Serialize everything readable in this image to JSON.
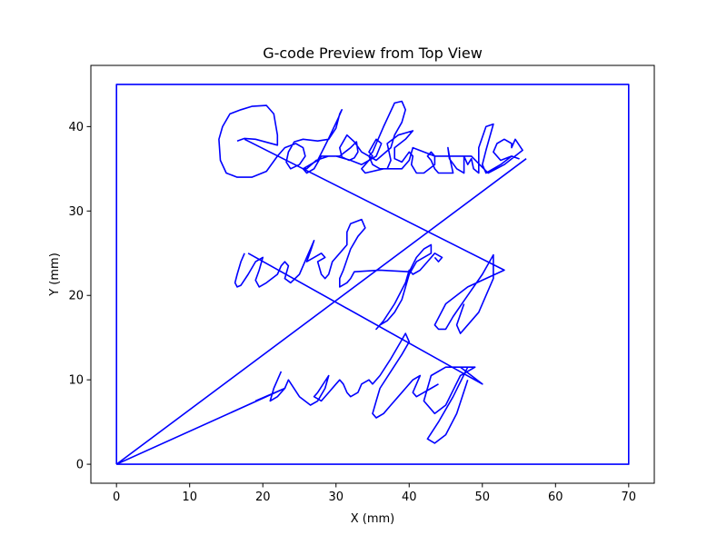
{
  "chart_data": {
    "type": "line",
    "title": "G-code Preview from Top View",
    "xlabel": "X (mm)",
    "ylabel": "Y (mm)",
    "xlim": [
      -3.5,
      73.5
    ],
    "ylim": [
      -2.25,
      47.25
    ],
    "xticks": [
      0,
      10,
      20,
      30,
      40,
      50,
      60,
      70
    ],
    "yticks": [
      0,
      10,
      20,
      30,
      40
    ],
    "grid": false,
    "legend": "none",
    "line_color": "#0000ff",
    "series": [
      {
        "path": [
          [
            0,
            0
          ],
          [
            70,
            0
          ],
          [
            70,
            45
          ],
          [
            0,
            45
          ],
          [
            0,
            0
          ]
        ]
      },
      {
        "path": [
          [
            0,
            0
          ],
          [
            23,
            9
          ],
          [
            19,
            7.5
          ]
        ]
      },
      {
        "path": [
          [
            0,
            0
          ],
          [
            56,
            36.2
          ]
        ]
      },
      {
        "path": [
          [
            17.5,
            38.5
          ],
          [
            53,
            23
          ],
          [
            48,
            21
          ],
          [
            45,
            19
          ],
          [
            43.5,
            16.5
          ],
          [
            44,
            16
          ],
          [
            45,
            16
          ],
          [
            46,
            17.5
          ],
          [
            48,
            20
          ],
          [
            50,
            22.5
          ],
          [
            51.5,
            24.8
          ],
          [
            51.5,
            22
          ],
          [
            49.5,
            18
          ],
          [
            47,
            15.5
          ],
          [
            46.5,
            16.5
          ],
          [
            47.5,
            19
          ]
        ]
      },
      {
        "path": [
          [
            18,
            25
          ],
          [
            50,
            9.5
          ],
          [
            47,
            11.5
          ],
          [
            49,
            11.5
          ],
          [
            47,
            10.5
          ],
          [
            45,
            7
          ],
          [
            43.5,
            6
          ],
          [
            42,
            7.5
          ],
          [
            43,
            10.5
          ],
          [
            45,
            11.5
          ],
          [
            48,
            11.5
          ],
          [
            46,
            8
          ],
          [
            44,
            5
          ],
          [
            42.5,
            3
          ],
          [
            43.5,
            2.5
          ],
          [
            45,
            3.5
          ],
          [
            46.5,
            6
          ],
          [
            48,
            10
          ]
        ]
      },
      {
        "path": [
          [
            16.5,
            38.3
          ],
          [
            17.5,
            38.6
          ],
          [
            19,
            38.5
          ],
          [
            22,
            37.8
          ],
          [
            22,
            39
          ],
          [
            21.5,
            41.5
          ],
          [
            20.5,
            42.5
          ],
          [
            18.5,
            42.4
          ],
          [
            17,
            42
          ],
          [
            15.5,
            41.5
          ],
          [
            14.5,
            40
          ],
          [
            14,
            38.5
          ],
          [
            14.2,
            36
          ],
          [
            15,
            34.5
          ],
          [
            16.5,
            34
          ],
          [
            18.5,
            34
          ],
          [
            20.5,
            34.7
          ],
          [
            22,
            36.5
          ],
          [
            23,
            37.5
          ],
          [
            24.5,
            38
          ],
          [
            25.5,
            37.5
          ],
          [
            25.8,
            36.5
          ],
          [
            25,
            35.5
          ],
          [
            23.8,
            35
          ],
          [
            23.2,
            35.8
          ],
          [
            23.5,
            37
          ],
          [
            24.3,
            38.2
          ],
          [
            25.5,
            38.5
          ],
          [
            27.5,
            38.3
          ],
          [
            29,
            38.5
          ],
          [
            30,
            39.8
          ],
          [
            30.5,
            41.5
          ],
          [
            30.8,
            42
          ],
          [
            30.3,
            41
          ],
          [
            29,
            38.6
          ],
          [
            27.5,
            36
          ],
          [
            25.5,
            35
          ],
          [
            26,
            35
          ],
          [
            27.3,
            36
          ],
          [
            29,
            36.5
          ],
          [
            30.5,
            36.5
          ],
          [
            32,
            37.5
          ],
          [
            32.8,
            38.2
          ],
          [
            33,
            37
          ],
          [
            32.5,
            36.3
          ],
          [
            31.8,
            36
          ],
          [
            30.8,
            36.4
          ],
          [
            30.5,
            37.5
          ],
          [
            31.5,
            39
          ],
          [
            32.5,
            38.2
          ],
          [
            33.5,
            37
          ],
          [
            35.5,
            36
          ],
          [
            37.5,
            37.5
          ],
          [
            38,
            39
          ],
          [
            39,
            40.5
          ],
          [
            39.5,
            42
          ],
          [
            39,
            43
          ],
          [
            38,
            42.8
          ],
          [
            36.5,
            40
          ],
          [
            35,
            37
          ],
          [
            34.5,
            36.5
          ],
          [
            35,
            35.5
          ],
          [
            36,
            35
          ],
          [
            37,
            35
          ],
          [
            37.5,
            36
          ],
          [
            37,
            38
          ],
          [
            38.5,
            39
          ],
          [
            40.5,
            39.5
          ],
          [
            39.5,
            38.5
          ],
          [
            38,
            37.5
          ],
          [
            38,
            36.2
          ],
          [
            39,
            35.8
          ],
          [
            40,
            37
          ],
          [
            40.5,
            36.5
          ],
          [
            40.3,
            35.5
          ],
          [
            41,
            34.5
          ],
          [
            42,
            34.5
          ],
          [
            43.5,
            35.5
          ],
          [
            43.5,
            36.5
          ],
          [
            43,
            37
          ],
          [
            42.5,
            36.5
          ],
          [
            43,
            36
          ],
          [
            43.5,
            35
          ],
          [
            44,
            34.5
          ],
          [
            46,
            34.5
          ],
          [
            45.5,
            36.5
          ],
          [
            45.3,
            37.5
          ],
          [
            45.5,
            36.2
          ],
          [
            46.5,
            35
          ],
          [
            47.5,
            34.5
          ],
          [
            47.5,
            36.5
          ],
          [
            48,
            35.5
          ],
          [
            48.5,
            36.2
          ],
          [
            48.8,
            35
          ],
          [
            49.5,
            34.5
          ],
          [
            49.5,
            37.5
          ],
          [
            50.5,
            40
          ],
          [
            51.5,
            40.3
          ],
          [
            50.5,
            37.2
          ],
          [
            50,
            35.5
          ],
          [
            50.5,
            34.5
          ],
          [
            52.5,
            35.5
          ],
          [
            54,
            36.5
          ],
          [
            55,
            36.2
          ],
          [
            54,
            36.5
          ],
          [
            52.5,
            36
          ],
          [
            51.5,
            37
          ],
          [
            52,
            38
          ],
          [
            53,
            38.5
          ],
          [
            54,
            38
          ],
          [
            54,
            37.5
          ],
          [
            54.5,
            38.5
          ],
          [
            55.5,
            37.2
          ],
          [
            53,
            35.5
          ],
          [
            50.8,
            34.5
          ],
          [
            50.2,
            35
          ],
          [
            48.5,
            36.5
          ],
          [
            43.5,
            36.5
          ],
          [
            40.5,
            37.5
          ],
          [
            40,
            36
          ],
          [
            39,
            35
          ],
          [
            36.5,
            35
          ],
          [
            34,
            34.5
          ],
          [
            33.5,
            35
          ],
          [
            35,
            36.5
          ],
          [
            34.5,
            37
          ],
          [
            35.5,
            38.5
          ],
          [
            36.2,
            38
          ],
          [
            35.5,
            36.5
          ],
          [
            33.5,
            35.5
          ],
          [
            32,
            36
          ],
          [
            30,
            36.5
          ],
          [
            28,
            36.5
          ],
          [
            27,
            35
          ],
          [
            26,
            34.5
          ],
          [
            25.5,
            35
          ]
        ]
      },
      {
        "path": [
          [
            17.5,
            25
          ],
          [
            17,
            24
          ],
          [
            16.5,
            22.5
          ],
          [
            16.2,
            21.5
          ],
          [
            16.5,
            21
          ],
          [
            17,
            21.2
          ],
          [
            18,
            22.5
          ],
          [
            19,
            24
          ],
          [
            20,
            24.5
          ],
          [
            19.5,
            23
          ],
          [
            19,
            21.8
          ],
          [
            19.5,
            21
          ],
          [
            20.5,
            21.5
          ],
          [
            22,
            22.5
          ],
          [
            22.5,
            23.5
          ],
          [
            23,
            24
          ],
          [
            23.5,
            23.5
          ],
          [
            23,
            22
          ],
          [
            23.8,
            21.5
          ],
          [
            25,
            22.5
          ],
          [
            26,
            24.5
          ],
          [
            26.5,
            25.5
          ],
          [
            27,
            26.5
          ],
          [
            26.5,
            25.2
          ],
          [
            26,
            24
          ],
          [
            27,
            24.5
          ],
          [
            28,
            25
          ],
          [
            28.5,
            24.5
          ],
          [
            27.5,
            24
          ],
          [
            28,
            22.5
          ],
          [
            28.5,
            22
          ],
          [
            29,
            22.5
          ],
          [
            29.5,
            24
          ],
          [
            30.5,
            25
          ],
          [
            31.5,
            26
          ],
          [
            31.5,
            27.5
          ],
          [
            32,
            28.5
          ],
          [
            33.5,
            29
          ],
          [
            34,
            28
          ],
          [
            33,
            27
          ],
          [
            32,
            25.5
          ],
          [
            31,
            23
          ],
          [
            30.5,
            22
          ],
          [
            30.5,
            21
          ],
          [
            31.5,
            21.5
          ],
          [
            32,
            22
          ],
          [
            32.5,
            22.8
          ],
          [
            36,
            23
          ],
          [
            40,
            22.8
          ],
          [
            41,
            24.5
          ],
          [
            42,
            25.5
          ],
          [
            43,
            26
          ],
          [
            43,
            25
          ],
          [
            42,
            24.5
          ],
          [
            41,
            24
          ],
          [
            40,
            22.5
          ],
          [
            39,
            19.5
          ],
          [
            38,
            18
          ],
          [
            37,
            17
          ],
          [
            36,
            16.5
          ],
          [
            35.5,
            16
          ],
          [
            36.5,
            17
          ],
          [
            38,
            19
          ],
          [
            39.5,
            21.5
          ],
          [
            40,
            23
          ],
          [
            40.5,
            22.5
          ],
          [
            41.5,
            23
          ],
          [
            42.5,
            24
          ],
          [
            43.5,
            25
          ],
          [
            44.5,
            24.5
          ],
          [
            44,
            24
          ],
          [
            43.5,
            24.5
          ]
        ]
      },
      {
        "path": [
          [
            22.5,
            11
          ],
          [
            21.5,
            9
          ],
          [
            21,
            7.5
          ],
          [
            22,
            8
          ],
          [
            23,
            9
          ],
          [
            23.5,
            10
          ],
          [
            25,
            8
          ],
          [
            26.5,
            7
          ],
          [
            27.5,
            7.5
          ],
          [
            28.5,
            9
          ],
          [
            29,
            10.5
          ],
          [
            27.5,
            8.5
          ],
          [
            27,
            8
          ],
          [
            28,
            7.5
          ],
          [
            29,
            8.5
          ],
          [
            30,
            9.5
          ],
          [
            30.5,
            10
          ],
          [
            31,
            9.5
          ],
          [
            31.5,
            8.5
          ],
          [
            32,
            8
          ],
          [
            33,
            8.5
          ],
          [
            33.5,
            9.5
          ],
          [
            34.5,
            10
          ],
          [
            35,
            9.5
          ],
          [
            36,
            10.5
          ],
          [
            37.5,
            12.5
          ],
          [
            38.5,
            14
          ],
          [
            39.5,
            15.5
          ],
          [
            40,
            14.5
          ],
          [
            39,
            13
          ],
          [
            37.5,
            11
          ],
          [
            36,
            9
          ],
          [
            35.5,
            7.5
          ],
          [
            35,
            6
          ],
          [
            35.5,
            5.5
          ],
          [
            36.5,
            6
          ],
          [
            37.5,
            7
          ],
          [
            38.5,
            8
          ],
          [
            39.5,
            9
          ],
          [
            40.5,
            10
          ],
          [
            41.5,
            10.5
          ],
          [
            41,
            9.5
          ],
          [
            40.5,
            8.5
          ],
          [
            41,
            8
          ],
          [
            42,
            8.5
          ],
          [
            43,
            9
          ],
          [
            44,
            9.5
          ]
        ]
      }
    ]
  }
}
